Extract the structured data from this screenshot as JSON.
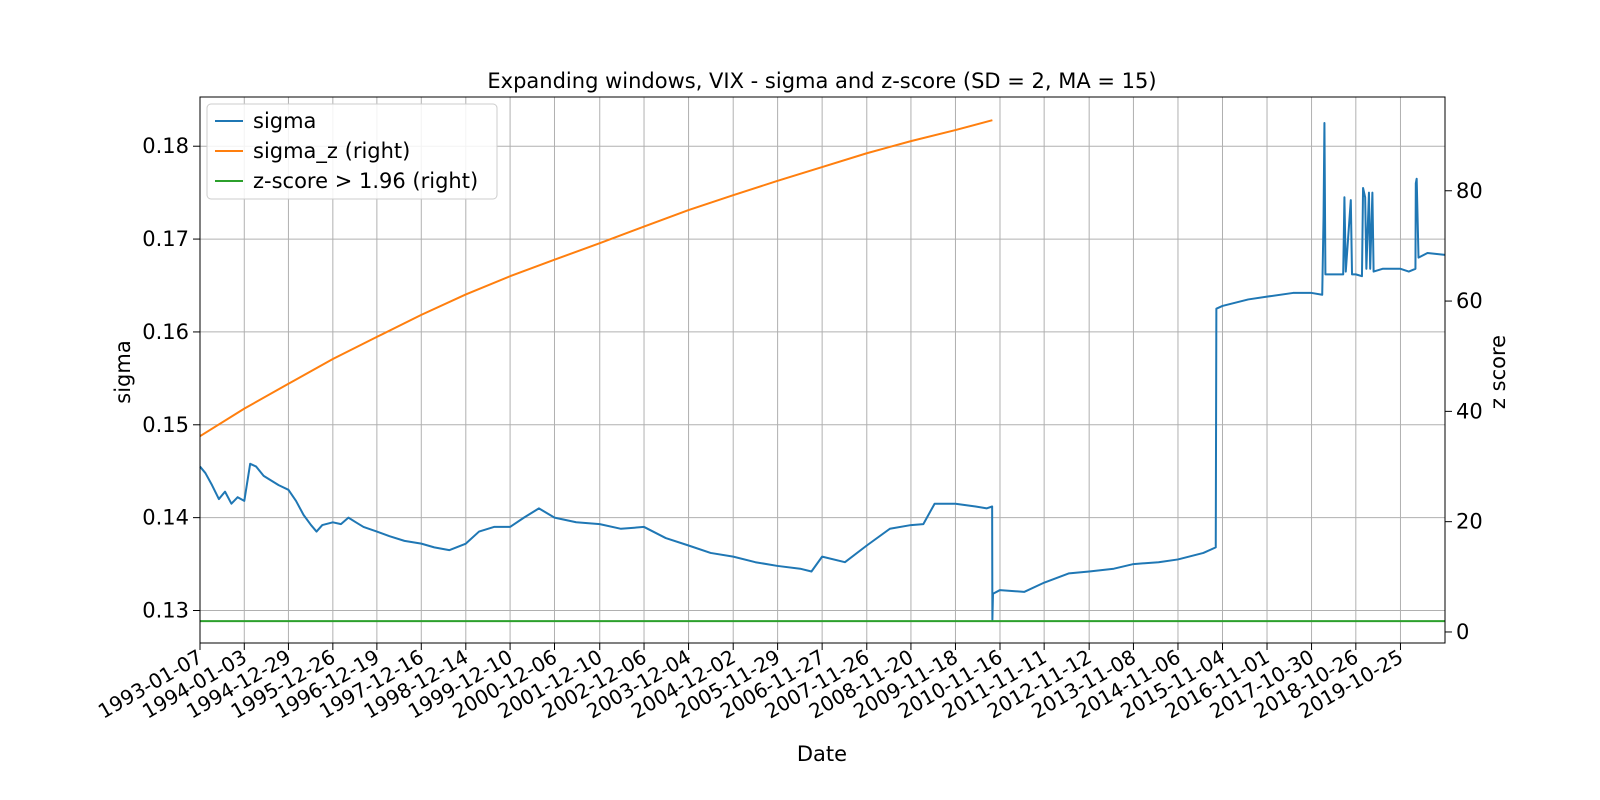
{
  "chart_data": {
    "type": "line",
    "title": "Expanding windows, VIX - sigma and z-score (SD = 2, MA = 15)",
    "xlabel": "Date",
    "ylabel": "sigma",
    "ylabel_right": "z score",
    "x_tick_labels": [
      "1993-01-07",
      "1994-01-03",
      "1994-12-29",
      "1995-12-26",
      "1996-12-19",
      "1997-12-16",
      "1998-12-14",
      "1999-12-10",
      "2000-12-06",
      "2001-12-10",
      "2002-12-06",
      "2003-12-04",
      "2004-12-02",
      "2005-11-29",
      "2006-11-27",
      "2007-11-26",
      "2008-11-20",
      "2009-11-18",
      "2010-11-16",
      "2011-11-11",
      "2012-11-12",
      "2013-11-08",
      "2014-11-06",
      "2015-11-04",
      "2016-11-01",
      "2017-10-30",
      "2018-10-26",
      "2019-10-25"
    ],
    "x_range": [
      "1993-01-07",
      "2020-10-22"
    ],
    "ylim_left": [
      0.1265,
      0.1853
    ],
    "ylim_right": [
      -2.0,
      97.0
    ],
    "y_ticks_left": [
      0.13,
      0.14,
      0.15,
      0.16,
      0.17,
      0.18
    ],
    "y_ticks_right": [
      0,
      20,
      40,
      60,
      80
    ],
    "grid": true,
    "legend_position": "upper left",
    "series": [
      {
        "name": "sigma",
        "axis": "left",
        "color": "#1f77b4",
        "points": [
          [
            "1993-01-07",
            0.1455
          ],
          [
            "1993-02-20",
            0.1448
          ],
          [
            "1993-04-15",
            0.1435
          ],
          [
            "1993-06-10",
            0.142
          ],
          [
            "1993-07-30",
            0.1428
          ],
          [
            "1993-09-20",
            0.1415
          ],
          [
            "1993-11-10",
            0.1422
          ],
          [
            "1994-01-03",
            0.1418
          ],
          [
            "1994-02-20",
            0.1458
          ],
          [
            "1994-04-10",
            0.1455
          ],
          [
            "1994-06-10",
            0.1445
          ],
          [
            "1994-08-10",
            0.144
          ],
          [
            "1994-10-10",
            0.1435
          ],
          [
            "1994-12-29",
            0.143
          ],
          [
            "1995-03-01",
            0.1418
          ],
          [
            "1995-05-01",
            0.1403
          ],
          [
            "1995-07-01",
            0.1392
          ],
          [
            "1995-08-15",
            0.1385
          ],
          [
            "1995-10-01",
            0.1392
          ],
          [
            "1995-12-26",
            0.1395
          ],
          [
            "1996-03-01",
            0.1393
          ],
          [
            "1996-05-01",
            0.14
          ],
          [
            "1996-07-01",
            0.1395
          ],
          [
            "1996-09-01",
            0.139
          ],
          [
            "1996-12-19",
            0.1385
          ],
          [
            "1997-04-01",
            0.138
          ],
          [
            "1997-08-01",
            0.1375
          ],
          [
            "1997-12-16",
            0.1372
          ],
          [
            "1998-04-01",
            0.1368
          ],
          [
            "1998-08-01",
            0.1365
          ],
          [
            "1998-12-14",
            0.1372
          ],
          [
            "1999-04-01",
            0.1385
          ],
          [
            "1999-08-01",
            0.139
          ],
          [
            "1999-12-10",
            0.139
          ],
          [
            "2000-04-01",
            0.14
          ],
          [
            "2000-08-01",
            0.141
          ],
          [
            "2000-12-06",
            0.14
          ],
          [
            "2001-06-01",
            0.1395
          ],
          [
            "2001-12-10",
            0.1393
          ],
          [
            "2002-06-01",
            0.1388
          ],
          [
            "2002-12-06",
            0.139
          ],
          [
            "2003-06-01",
            0.1378
          ],
          [
            "2003-12-04",
            0.137
          ],
          [
            "2004-06-01",
            0.1362
          ],
          [
            "2004-12-02",
            0.1358
          ],
          [
            "2005-06-01",
            0.1352
          ],
          [
            "2005-11-29",
            0.1348
          ],
          [
            "2006-06-01",
            0.1345
          ],
          [
            "2006-09-01",
            0.1342
          ],
          [
            "2006-11-27",
            0.1358
          ],
          [
            "2007-06-01",
            0.1352
          ],
          [
            "2007-11-26",
            0.137
          ],
          [
            "2008-06-01",
            0.1388
          ],
          [
            "2008-11-20",
            0.1392
          ],
          [
            "2009-03-01",
            0.1393
          ],
          [
            "2009-06-01",
            0.1415
          ],
          [
            "2009-11-18",
            0.1415
          ],
          [
            "2010-05-01",
            0.1412
          ],
          [
            "2010-08-01",
            0.141
          ],
          [
            "2010-09-13",
            0.1412
          ],
          [
            "2010-09-15",
            0.129
          ],
          [
            "2010-09-20",
            0.1318
          ],
          [
            "2010-11-16",
            0.1322
          ],
          [
            "2011-06-01",
            0.132
          ],
          [
            "2011-11-11",
            0.133
          ],
          [
            "2012-06-01",
            0.134
          ],
          [
            "2012-11-12",
            0.1342
          ],
          [
            "2013-06-01",
            0.1345
          ],
          [
            "2013-11-08",
            0.135
          ],
          [
            "2014-06-01",
            0.1352
          ],
          [
            "2014-11-06",
            0.1355
          ],
          [
            "2015-06-01",
            0.1362
          ],
          [
            "2015-09-10",
            0.1368
          ],
          [
            "2015-09-15",
            0.1625
          ],
          [
            "2015-11-04",
            0.1628
          ],
          [
            "2016-06-01",
            0.1635
          ],
          [
            "2016-11-01",
            0.1638
          ],
          [
            "2017-06-01",
            0.1642
          ],
          [
            "2017-10-30",
            0.1642
          ],
          [
            "2018-01-25",
            0.164
          ],
          [
            "2018-02-05",
            0.1725
          ],
          [
            "2018-02-12",
            0.1825
          ],
          [
            "2018-02-20",
            0.1662
          ],
          [
            "2018-07-15",
            0.1662
          ],
          [
            "2018-07-25",
            0.1745
          ],
          [
            "2018-08-05",
            0.1665
          ],
          [
            "2018-09-15",
            0.1742
          ],
          [
            "2018-09-25",
            0.1662
          ],
          [
            "2018-10-26",
            0.1662
          ],
          [
            "2018-12-15",
            0.166
          ],
          [
            "2018-12-24",
            0.1755
          ],
          [
            "2019-01-10",
            0.1745
          ],
          [
            "2019-01-20",
            0.1668
          ],
          [
            "2019-02-10",
            0.175
          ],
          [
            "2019-02-20",
            0.1668
          ],
          [
            "2019-03-10",
            0.175
          ],
          [
            "2019-03-20",
            0.1665
          ],
          [
            "2019-06-01",
            0.1668
          ],
          [
            "2019-10-25",
            0.1668
          ],
          [
            "2020-01-01",
            0.1665
          ],
          [
            "2020-02-24",
            0.1668
          ],
          [
            "2020-02-27",
            0.176
          ],
          [
            "2020-03-05",
            0.1765
          ],
          [
            "2020-03-20",
            0.168
          ],
          [
            "2020-06-01",
            0.1685
          ],
          [
            "2020-10-22",
            0.1683
          ]
        ]
      },
      {
        "name": "sigma_z (right)",
        "axis": "right",
        "color": "#ff7f0e",
        "points": [
          [
            "1993-01-07",
            35.5
          ],
          [
            "1994-01-03",
            40.5
          ],
          [
            "1994-12-29",
            45.0
          ],
          [
            "1995-12-26",
            49.5
          ],
          [
            "1996-12-19",
            53.5
          ],
          [
            "1997-12-16",
            57.5
          ],
          [
            "1998-12-14",
            61.2
          ],
          [
            "1999-12-10",
            64.5
          ],
          [
            "2000-12-06",
            67.5
          ],
          [
            "2001-12-10",
            70.5
          ],
          [
            "2002-12-06",
            73.5
          ],
          [
            "2003-12-04",
            76.5
          ],
          [
            "2004-12-02",
            79.2
          ],
          [
            "2005-11-29",
            81.8
          ],
          [
            "2006-11-27",
            84.3
          ],
          [
            "2007-11-26",
            86.8
          ],
          [
            "2008-11-20",
            89.0
          ],
          [
            "2009-11-18",
            91.0
          ],
          [
            "2010-09-15",
            92.8
          ]
        ]
      },
      {
        "name": "z-score > 1.96 (right)",
        "axis": "right",
        "color": "#2ca02c",
        "points": [
          [
            "1993-01-07",
            1.96
          ],
          [
            "2020-10-22",
            1.96
          ]
        ]
      }
    ]
  }
}
